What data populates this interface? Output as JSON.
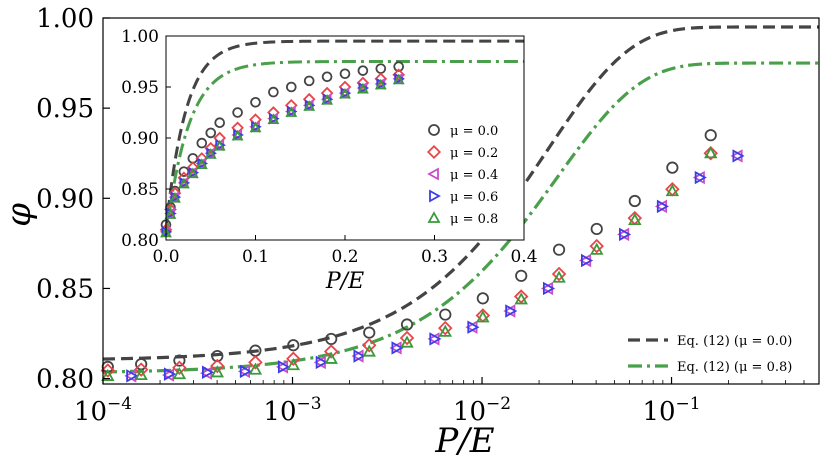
{
  "chart_data": [
    {
      "type": "scatter",
      "name": "main",
      "xscale": "log",
      "xlim": [
        0.0001,
        0.6
      ],
      "ylim": [
        0.797,
        1.0
      ],
      "xlabel": "P/E",
      "ylabel": "φ",
      "xticks": [
        {
          "v": 0.0001,
          "base": "10",
          "exp": "−4"
        },
        {
          "v": 0.001,
          "base": "10",
          "exp": "−3"
        },
        {
          "v": 0.01,
          "base": "10",
          "exp": "−2"
        },
        {
          "v": 0.1,
          "base": "10",
          "exp": "−1"
        }
      ],
      "yticks": [
        {
          "v": 0.8,
          "label": "0.80"
        },
        {
          "v": 0.85,
          "label": "0.85"
        },
        {
          "v": 0.9,
          "label": "0.90"
        },
        {
          "v": 0.95,
          "label": "0.95"
        },
        {
          "v": 1.0,
          "label": "1.00"
        }
      ],
      "series": [
        {
          "name": "mu0.0",
          "marker": "circle",
          "color": "#444444",
          "x": [
            0.000106,
            0.000159,
            0.000253,
            0.000401,
            0.000637,
            0.00101,
            0.0016,
            0.00254,
            0.00402,
            0.0064,
            0.0101,
            0.0161,
            0.0255,
            0.0403,
            0.064,
            0.101,
            0.161
          ],
          "y": [
            0.8065,
            0.808,
            0.81,
            0.8125,
            0.8155,
            0.8185,
            0.822,
            0.8255,
            0.83,
            0.8355,
            0.8445,
            0.857,
            0.8715,
            0.883,
            0.8985,
            0.917,
            0.935
          ]
        },
        {
          "name": "mu0.2",
          "marker": "diamond",
          "color": "#e8454a",
          "x": [
            0.000106,
            0.000159,
            0.000253,
            0.000401,
            0.000637,
            0.00101,
            0.0016,
            0.00254,
            0.00402,
            0.0064,
            0.0101,
            0.0161,
            0.0255,
            0.0403,
            0.064,
            0.101,
            0.161
          ],
          "y": [
            0.8045,
            0.805,
            0.806,
            0.807,
            0.809,
            0.811,
            0.815,
            0.8185,
            0.8225,
            0.828,
            0.835,
            0.8455,
            0.858,
            0.8735,
            0.889,
            0.905,
            0.925
          ]
        },
        {
          "name": "mu0.4",
          "marker": "triangle-left",
          "color": "#c74fc7",
          "x": [
            0.000141,
            0.000223,
            0.000354,
            0.000561,
            0.000891,
            0.00141,
            0.00223,
            0.00354,
            0.00561,
            0.0089,
            0.0141,
            0.0223,
            0.0354,
            0.0562,
            0.089,
            0.141,
            0.223
          ],
          "y": [
            0.8015,
            0.802,
            0.803,
            0.804,
            0.8065,
            0.809,
            0.8125,
            0.817,
            0.822,
            0.8285,
            0.8375,
            0.85,
            0.8655,
            0.88,
            0.8955,
            0.9115,
            0.9235
          ]
        },
        {
          "name": "mu0.6",
          "marker": "triangle-right",
          "color": "#3c3ce8",
          "x": [
            0.000141,
            0.000223,
            0.000354,
            0.000561,
            0.000891,
            0.00141,
            0.00223,
            0.00354,
            0.00561,
            0.0089,
            0.0141,
            0.0223,
            0.0354,
            0.0562,
            0.089,
            0.141,
            0.223
          ],
          "y": [
            0.8015,
            0.8025,
            0.8035,
            0.804,
            0.8065,
            0.809,
            0.8125,
            0.817,
            0.822,
            0.8285,
            0.8375,
            0.85,
            0.8655,
            0.88,
            0.8955,
            0.9115,
            0.9235
          ]
        },
        {
          "name": "mu0.8",
          "marker": "triangle-up",
          "color": "#3a9a3a",
          "x": [
            0.000106,
            0.000159,
            0.000253,
            0.000401,
            0.000637,
            0.00101,
            0.0016,
            0.00254,
            0.00402,
            0.0064,
            0.0101,
            0.0161,
            0.0255,
            0.0403,
            0.064,
            0.101,
            0.161
          ],
          "y": [
            0.8015,
            0.802,
            0.8025,
            0.8035,
            0.805,
            0.8075,
            0.811,
            0.815,
            0.82,
            0.826,
            0.834,
            0.844,
            0.856,
            0.8715,
            0.888,
            0.904,
            0.925
          ]
        }
      ],
      "curves": [
        {
          "name": "eq12-mu0.0",
          "style": "dashed",
          "color": "#444444",
          "phi0": 0.81,
          "phimax": 0.995,
          "k": 45
        },
        {
          "name": "eq12-mu0.8",
          "style": "dashdot",
          "color": "#4aa04a",
          "phi0": 0.803,
          "phimax": 0.975,
          "k": 40
        }
      ],
      "legend": {
        "placement": "bottom-right",
        "items": [
          {
            "label": "Eq. (12) (μ = 0.0)",
            "style": "dashed",
            "color": "#444444"
          },
          {
            "label": "Eq. (12) (μ = 0.8)",
            "style": "dashdot",
            "color": "#4aa04a"
          }
        ]
      }
    },
    {
      "type": "scatter",
      "name": "inset",
      "xscale": "linear",
      "xlim": [
        0.0,
        0.4
      ],
      "ylim": [
        0.8,
        1.0
      ],
      "xlabel": "P/E",
      "xticks": [
        {
          "v": 0.0,
          "label": "0.0"
        },
        {
          "v": 0.1,
          "label": "0.1"
        },
        {
          "v": 0.2,
          "label": "0.2"
        },
        {
          "v": 0.3,
          "label": "0.3"
        },
        {
          "v": 0.4,
          "label": "0.4"
        }
      ],
      "yticks": [
        {
          "v": 0.8,
          "label": "0.80"
        },
        {
          "v": 0.85,
          "label": "0.85"
        },
        {
          "v": 0.9,
          "label": "0.90"
        },
        {
          "v": 0.95,
          "label": "0.95"
        },
        {
          "v": 1.0,
          "label": "1.00"
        }
      ],
      "series": [
        {
          "name": "mu0.0",
          "marker": "circle",
          "color": "#444444",
          "x": [
            0.0,
            0.005,
            0.01,
            0.02,
            0.03,
            0.04,
            0.05,
            0.06,
            0.08,
            0.1,
            0.12,
            0.14,
            0.16,
            0.18,
            0.2,
            0.22,
            0.24,
            0.26
          ],
          "y": [
            0.815,
            0.832,
            0.848,
            0.867,
            0.88,
            0.895,
            0.905,
            0.915,
            0.925,
            0.935,
            0.945,
            0.95,
            0.956,
            0.96,
            0.963,
            0.966,
            0.968,
            0.97
          ]
        },
        {
          "name": "mu0.2",
          "marker": "diamond",
          "color": "#e8454a",
          "x": [
            0.0,
            0.005,
            0.01,
            0.02,
            0.03,
            0.04,
            0.05,
            0.06,
            0.08,
            0.1,
            0.12,
            0.14,
            0.16,
            0.18,
            0.2,
            0.22,
            0.24,
            0.26
          ],
          "y": [
            0.81,
            0.83,
            0.846,
            0.861,
            0.871,
            0.88,
            0.89,
            0.9,
            0.91,
            0.918,
            0.925,
            0.932,
            0.938,
            0.944,
            0.95,
            0.954,
            0.958,
            0.962
          ]
        },
        {
          "name": "mu0.4",
          "marker": "triangle-left",
          "color": "#c74fc7",
          "x": [
            0.0,
            0.005,
            0.01,
            0.02,
            0.03,
            0.04,
            0.05,
            0.06,
            0.08,
            0.1,
            0.12,
            0.14,
            0.16,
            0.18,
            0.2,
            0.22,
            0.24,
            0.26
          ],
          "y": [
            0.808,
            0.826,
            0.842,
            0.856,
            0.866,
            0.875,
            0.885,
            0.893,
            0.903,
            0.911,
            0.919,
            0.926,
            0.932,
            0.938,
            0.944,
            0.949,
            0.953,
            0.958
          ]
        },
        {
          "name": "mu0.6",
          "marker": "triangle-right",
          "color": "#3c3ce8",
          "x": [
            0.0,
            0.005,
            0.01,
            0.02,
            0.03,
            0.04,
            0.05,
            0.06,
            0.08,
            0.1,
            0.12,
            0.14,
            0.16,
            0.18,
            0.2,
            0.22,
            0.24,
            0.26
          ],
          "y": [
            0.808,
            0.826,
            0.842,
            0.856,
            0.866,
            0.875,
            0.885,
            0.893,
            0.903,
            0.911,
            0.919,
            0.926,
            0.932,
            0.938,
            0.944,
            0.949,
            0.953,
            0.958
          ]
        },
        {
          "name": "mu0.8",
          "marker": "triangle-up",
          "color": "#3a9a3a",
          "x": [
            0.0,
            0.005,
            0.01,
            0.02,
            0.03,
            0.04,
            0.05,
            0.06,
            0.08,
            0.1,
            0.12,
            0.14,
            0.16,
            0.18,
            0.2,
            0.22,
            0.24,
            0.26
          ],
          "y": [
            0.807,
            0.825,
            0.841,
            0.855,
            0.865,
            0.874,
            0.884,
            0.892,
            0.902,
            0.91,
            0.918,
            0.925,
            0.931,
            0.937,
            0.943,
            0.948,
            0.952,
            0.957
          ]
        }
      ],
      "curves": [
        {
          "name": "eq12-mu0.0",
          "style": "dashed",
          "color": "#444444",
          "phi0": 0.81,
          "phimax": 0.995,
          "k": 45
        },
        {
          "name": "eq12-mu0.8",
          "style": "dashdot",
          "color": "#4aa04a",
          "phi0": 0.803,
          "phimax": 0.975,
          "k": 40
        }
      ],
      "legend": {
        "placement": "lower-right",
        "items": [
          {
            "label": "μ = 0.0",
            "marker": "circle",
            "color": "#444444"
          },
          {
            "label": "μ = 0.2",
            "marker": "diamond",
            "color": "#e8454a"
          },
          {
            "label": "μ = 0.4",
            "marker": "triangle-left",
            "color": "#c74fc7"
          },
          {
            "label": "μ = 0.6",
            "marker": "triangle-right",
            "color": "#3c3ce8"
          },
          {
            "label": "μ = 0.8",
            "marker": "triangle-up",
            "color": "#3a9a3a"
          }
        ]
      }
    }
  ]
}
